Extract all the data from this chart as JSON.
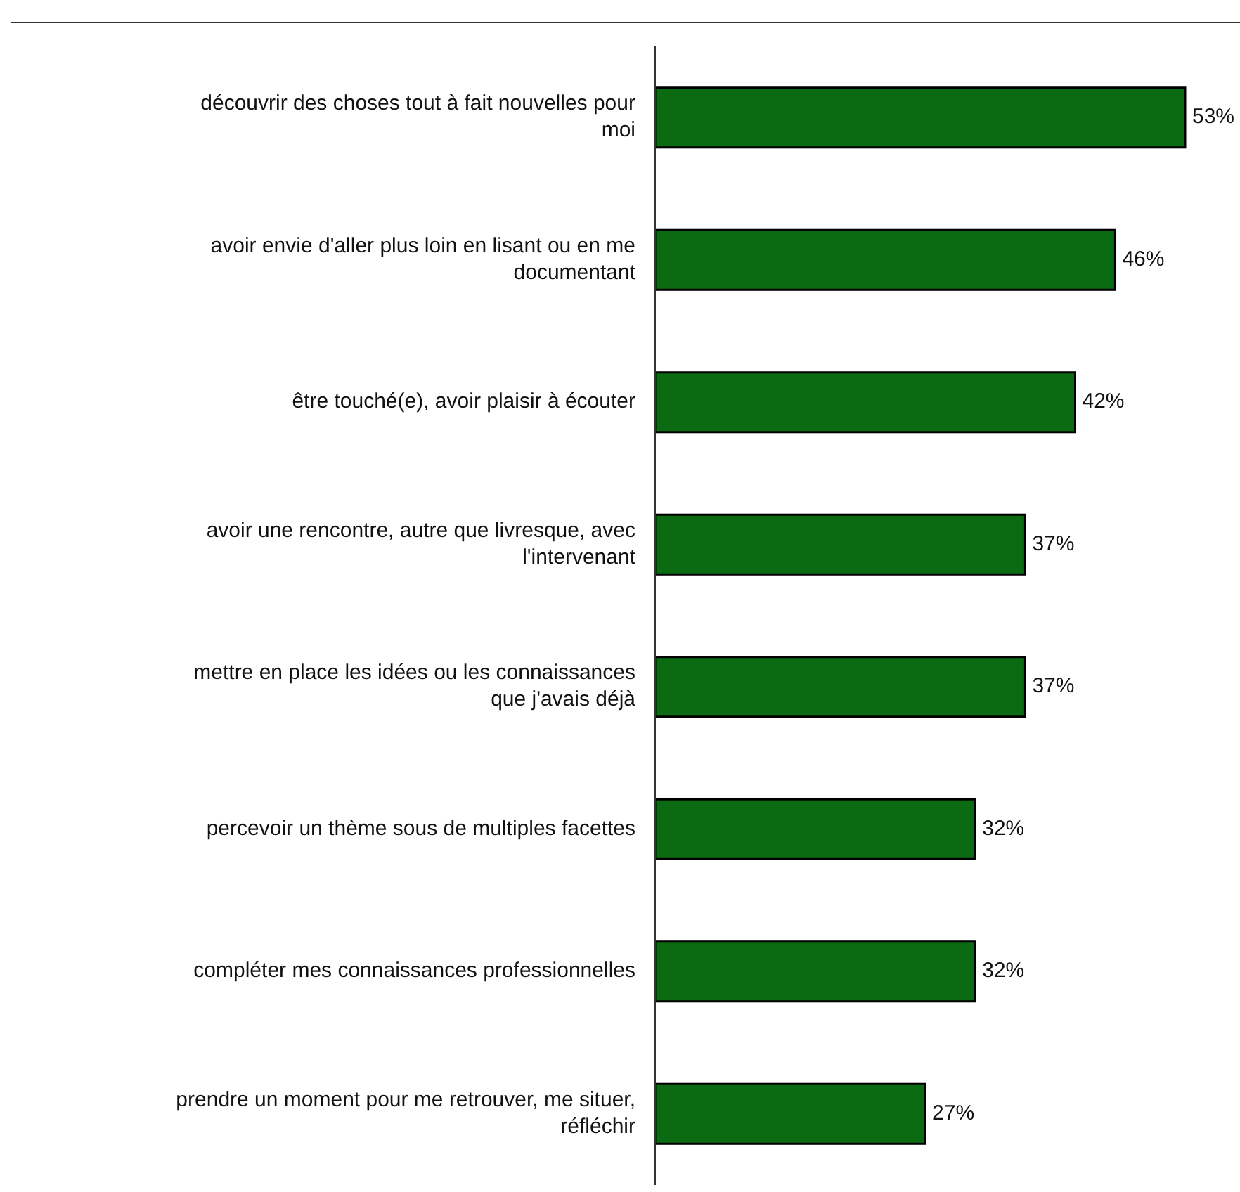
{
  "chart_data": {
    "type": "bar",
    "orientation": "horizontal",
    "categories": [
      "découvrir des choses tout à fait nouvelles pour moi",
      "avoir envie d'aller plus loin en lisant ou en me documentant",
      "être touché(e), avoir plaisir à écouter",
      "avoir une rencontre, autre que livresque, avec l'intervenant",
      "mettre en place les idées ou les connaissances que j'avais déjà",
      "percevoir un thème sous de multiples facettes",
      "compléter mes connaissances professionnelles",
      "prendre un moment pour me retrouver, me situer, réfléchir"
    ],
    "values": [
      53,
      46,
      42,
      37,
      37,
      32,
      32,
      27
    ],
    "value_labels": [
      "53%",
      "46%",
      "42%",
      "37%",
      "37%",
      "32%",
      "32%",
      "27%"
    ],
    "color": "#0b6b12"
  }
}
